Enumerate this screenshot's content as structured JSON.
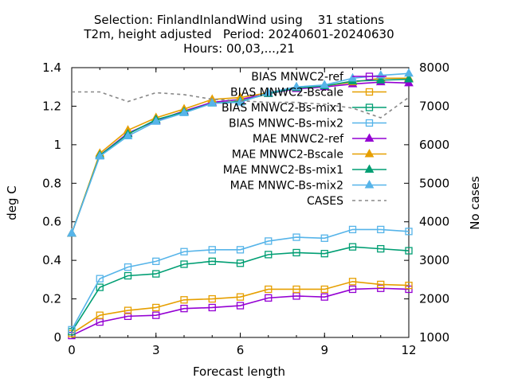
{
  "chart_data": {
    "type": "line",
    "title": [
      "Selection: FinlandInlandWind using    31 stations",
      "T2m, height adjusted   Period: 20240601-20240630",
      "Hours: 00,03,...,21"
    ],
    "xlabel": "Forecast length",
    "ylabel": "deg C",
    "y2label": "No cases",
    "xlim": [
      0,
      12
    ],
    "ylim": [
      0,
      1.4
    ],
    "y2lim": [
      1000,
      8000
    ],
    "xticks": [
      "0",
      "3",
      "6",
      "9",
      "12"
    ],
    "xtick_values": [
      0,
      3,
      6,
      9,
      12
    ],
    "yticks": [
      "0",
      "0.2",
      "0.4",
      "0.6",
      "0.8",
      "1",
      "1.2",
      "1.4"
    ],
    "ytick_values": [
      0,
      0.2,
      0.4,
      0.6,
      0.8,
      1.0,
      1.2,
      1.4
    ],
    "y2ticks": [
      "1000",
      "2000",
      "3000",
      "4000",
      "5000",
      "6000",
      "7000",
      "8000"
    ],
    "y2tick_values": [
      1000,
      2000,
      3000,
      4000,
      5000,
      6000,
      7000,
      8000
    ],
    "grid": false,
    "legend_position": "top-right",
    "x": [
      0,
      1,
      2,
      3,
      4,
      5,
      6,
      7,
      8,
      9,
      10,
      11,
      12
    ],
    "series": [
      {
        "name": "BIAS MNWC2-ref",
        "color": "#9400d3",
        "marker": "square",
        "axis": "y",
        "values": [
          0.01,
          0.08,
          0.11,
          0.115,
          0.15,
          0.155,
          0.165,
          0.205,
          0.215,
          0.21,
          0.25,
          0.255,
          0.25
        ]
      },
      {
        "name": "BIAS MNWC2-Bscale",
        "color": "#e69f00",
        "marker": "square",
        "axis": "y",
        "values": [
          0.02,
          0.115,
          0.14,
          0.155,
          0.195,
          0.2,
          0.21,
          0.25,
          0.25,
          0.25,
          0.29,
          0.275,
          0.27
        ]
      },
      {
        "name": "BIAS MNWC2-Bs-mix1",
        "color": "#009e73",
        "marker": "square",
        "axis": "y",
        "values": [
          0.03,
          0.26,
          0.32,
          0.33,
          0.38,
          0.395,
          0.385,
          0.43,
          0.44,
          0.435,
          0.47,
          0.46,
          0.45
        ]
      },
      {
        "name": "BIAS MNWC-Bs-mix2",
        "color": "#56b4e9",
        "marker": "square",
        "axis": "y",
        "values": [
          0.04,
          0.305,
          0.365,
          0.395,
          0.445,
          0.455,
          0.455,
          0.5,
          0.52,
          0.515,
          0.56,
          0.56,
          0.55
        ]
      },
      {
        "name": "MAE MNWC2-ref",
        "color": "#9400d3",
        "marker": "triangle",
        "axis": "y",
        "values": [
          0.54,
          0.945,
          1.06,
          1.125,
          1.175,
          1.22,
          1.235,
          1.265,
          1.29,
          1.3,
          1.315,
          1.325,
          1.32
        ]
      },
      {
        "name": "MAE MNWC2-Bscale",
        "color": "#e69f00",
        "marker": "triangle",
        "axis": "y",
        "values": [
          0.54,
          0.955,
          1.075,
          1.14,
          1.185,
          1.235,
          1.245,
          1.27,
          1.295,
          1.305,
          1.325,
          1.345,
          1.345
        ]
      },
      {
        "name": "MAE MNWC2-Bs-mix1",
        "color": "#009e73",
        "marker": "triangle",
        "axis": "y",
        "values": [
          0.54,
          0.945,
          1.055,
          1.13,
          1.17,
          1.215,
          1.225,
          1.265,
          1.295,
          1.305,
          1.33,
          1.335,
          1.34
        ]
      },
      {
        "name": "MAE MNWC-Bs-mix2",
        "color": "#56b4e9",
        "marker": "triangle",
        "axis": "y",
        "values": [
          0.54,
          0.94,
          1.045,
          1.12,
          1.165,
          1.215,
          1.22,
          1.27,
          1.3,
          1.31,
          1.345,
          1.36,
          1.37
        ]
      },
      {
        "name": "CASES",
        "color": "#888888",
        "marker": "none",
        "dash": true,
        "axis": "y2",
        "values": [
          7370,
          7370,
          7120,
          7350,
          7300,
          7180,
          7140,
          7100,
          7100,
          7050,
          6950,
          6700,
          7230
        ]
      }
    ]
  }
}
